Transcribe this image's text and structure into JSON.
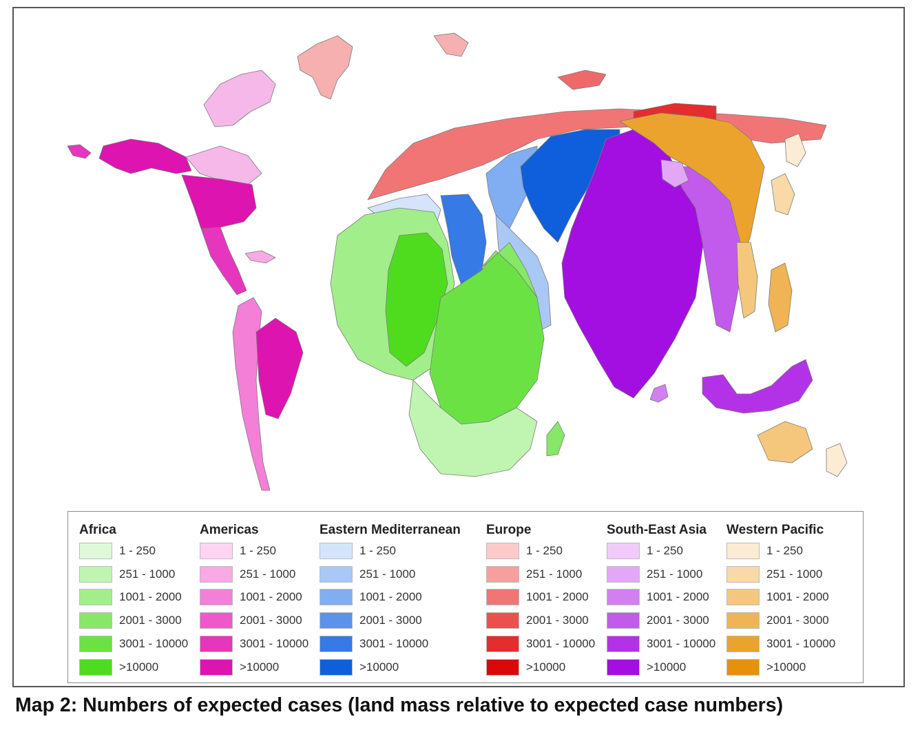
{
  "caption": "Map 2: Numbers of expected cases (land mass relative to expected case numbers)",
  "legend": {
    "ranges": [
      "1 - 250",
      "251 - 1000",
      "1001 - 2000",
      "2001 - 3000",
      "3001 - 10000",
      ">10000"
    ],
    "regions": [
      {
        "name": "Africa",
        "colors": [
          "#dff9d8",
          "#bff5b0",
          "#a2ee8a",
          "#86e866",
          "#6ae244",
          "#4fdc1f"
        ]
      },
      {
        "name": "Americas",
        "colors": [
          "#fdd5f2",
          "#f9a9e4",
          "#f47fd7",
          "#ee58ca",
          "#e636bd",
          "#dd14b0"
        ]
      },
      {
        "name": "Eastern Mediterranean",
        "colors": [
          "#d4e5fb",
          "#a9c8f6",
          "#81aef2",
          "#5b93ec",
          "#357ae5",
          "#0f5fdd"
        ]
      },
      {
        "name": "Europe",
        "colors": [
          "#fccaca",
          "#f89e9e",
          "#f27575",
          "#eb5050",
          "#e42d2d",
          "#db0808"
        ]
      },
      {
        "name": "South-East Asia",
        "colors": [
          "#f1ccfb",
          "#e2a7f6",
          "#d27ff1",
          "#c25aec",
          "#b332e7",
          "#a30fe1"
        ]
      },
      {
        "name": "Western Pacific",
        "colors": [
          "#fcecd4",
          "#f9d9a7",
          "#f5c77d",
          "#f0b455",
          "#eba32e",
          "#e5920b"
        ]
      }
    ]
  }
}
